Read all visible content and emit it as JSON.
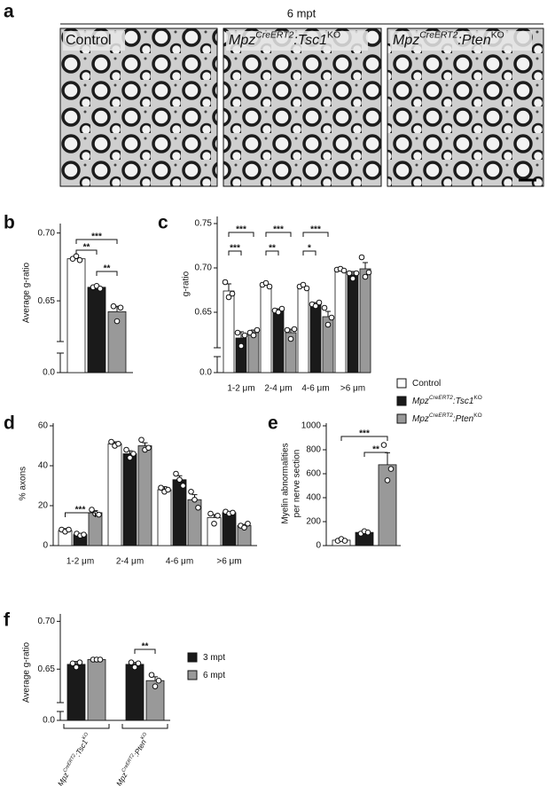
{
  "panel_a": {
    "letter": "a",
    "header": "6 mpt",
    "images": [
      [
        "Control"
      ],
      [
        "Mpz",
        "CreERT2",
        ":Tsc1",
        "KO"
      ],
      [
        "Mpz",
        "CreERT2",
        ":Pten",
        "KO"
      ]
    ]
  },
  "chart_data": [
    {
      "panel": "b",
      "type": "bar",
      "ylabel": "Average g-ratio",
      "ylim": [
        0.62,
        0.705
      ],
      "yticks": [
        0.65,
        {
          "value": 0.7,
          "label": "0.70"
        }
      ],
      "lower_yticks": [
        {
          "value": 0,
          "label": "0.0"
        }
      ],
      "series": [
        {
          "color": "#ffffff",
          "values": [
            0.681
          ],
          "errors": [
            0.001
          ],
          "points": [
            [
              0.681,
              0.683,
              0.68
            ]
          ]
        },
        {
          "color": "#1a1a1a",
          "values": [
            0.66
          ],
          "errors": [
            0.001
          ],
          "points": [
            [
              0.66,
              0.661,
              0.659
            ]
          ]
        },
        {
          "color": "#999999",
          "values": [
            0.642
          ],
          "errors": [
            0.004
          ],
          "points": [
            [
              0.646,
              0.635,
              0.645
            ]
          ]
        }
      ],
      "annotations": [
        "***",
        "**",
        "**"
      ]
    },
    {
      "panel": "c",
      "type": "bar",
      "ylabel": "g-ratio",
      "categories": [
        "1-2 μm",
        "2-4 μm",
        "4-6 μm",
        ">6 μm"
      ],
      "ylim": [
        0.61,
        0.755
      ],
      "yticks": [
        0.65,
        {
          "value": 0.7,
          "label": "0.70"
        },
        0.75
      ],
      "lower_yticks": [
        {
          "value": 0,
          "label": "0.0"
        }
      ],
      "series": [
        {
          "name": [
            "Control"
          ],
          "color": "#ffffff",
          "values": [
            0.674,
            0.681,
            0.679,
            0.698
          ],
          "errors": [
            0.008,
            0.002,
            0.002,
            0.002
          ],
          "points": [
            [
              0.684,
              0.667,
              0.671
            ],
            [
              0.681,
              0.683,
              0.679
            ],
            [
              0.679,
              0.681,
              0.677
            ],
            [
              0.698,
              0.699,
              0.697
            ]
          ]
        },
        {
          "name": [
            "Mpz",
            "CreERT2",
            ":Tsc1",
            "KO"
          ],
          "color": "#1a1a1a",
          "values": [
            0.621,
            0.652,
            0.659,
            0.692
          ],
          "errors": [
            0.007,
            0.002,
            0.002,
            0.004
          ],
          "points": [
            [
              0.627,
              0.612,
              0.624
            ],
            [
              0.652,
              0.65,
              0.654
            ],
            [
              0.659,
              0.657,
              0.661
            ],
            [
              0.694,
              0.688,
              0.694
            ]
          ]
        },
        {
          "name": [
            "Mpz",
            "CreERT2",
            ":Pten",
            "KO"
          ],
          "color": "#999999",
          "values": [
            0.627,
            0.627,
            0.645,
            0.699
          ],
          "errors": [
            0.003,
            0.004,
            0.006,
            0.007
          ],
          "points": [
            [
              0.627,
              0.624,
              0.63
            ],
            [
              0.63,
              0.62,
              0.631
            ],
            [
              0.655,
              0.636,
              0.644
            ],
            [
              0.712,
              0.69,
              0.695
            ]
          ]
        }
      ],
      "annotations": [
        "***",
        "***",
        "***",
        "**",
        "***",
        "*"
      ]
    },
    {
      "panel": "d",
      "type": "bar",
      "ylabel": "% axons",
      "categories": [
        "1-2 μm",
        "2-4 μm",
        "4-6 μm",
        ">6 μm"
      ],
      "ylim": [
        0,
        60
      ],
      "yticks": [
        0,
        20,
        40,
        60
      ],
      "series": [
        {
          "color": "#ffffff",
          "values": [
            7.5,
            51,
            28,
            14
          ],
          "errors": [
            1,
            1,
            1.5,
            1.5
          ],
          "points": [
            [
              8,
              7,
              8
            ],
            [
              52,
              50,
              51
            ],
            [
              29,
              27,
              28
            ],
            [
              16,
              11,
              15
            ]
          ]
        },
        {
          "color": "#1a1a1a",
          "values": [
            5.5,
            46,
            33,
            16.5
          ],
          "errors": [
            0.5,
            1.5,
            2,
            0.5
          ],
          "points": [
            [
              6,
              5,
              5.5
            ],
            [
              48,
              44,
              46
            ],
            [
              36,
              33,
              30
            ],
            [
              17,
              16,
              16.5
            ]
          ]
        },
        {
          "color": "#999999",
          "values": [
            16.5,
            50,
            23,
            10
          ],
          "errors": [
            1,
            1.5,
            2.5,
            0.6
          ],
          "points": [
            [
              18,
              16,
              15.5
            ],
            [
              53,
              48,
              49
            ],
            [
              27,
              23,
              19
            ],
            [
              10,
              9,
              11
            ]
          ]
        }
      ],
      "annotations": [
        "***"
      ]
    },
    {
      "panel": "e",
      "type": "bar",
      "ylabel": [
        "Myelin abnormalities",
        "per nerve section"
      ],
      "ylim": [
        0,
        1000
      ],
      "yticks": [
        0,
        200,
        400,
        600,
        800,
        1000
      ],
      "series": [
        {
          "color": "#ffffff",
          "values": [
            45
          ],
          "errors": [
            8
          ],
          "points": [
            [
              40,
              55,
              40
            ]
          ]
        },
        {
          "color": "#1a1a1a",
          "values": [
            110
          ],
          "errors": [
            12
          ],
          "points": [
            [
              100,
              120,
              110
            ]
          ]
        },
        {
          "color": "#999999",
          "values": [
            675
          ],
          "errors": [
            100
          ],
          "points": [
            [
              840,
              545,
              640
            ]
          ]
        }
      ],
      "annotations": [
        "***",
        "**"
      ]
    },
    {
      "panel": "f",
      "type": "bar",
      "ylabel": "Average g-ratio",
      "categories": [
        [
          "Mpz",
          "CreERT2",
          ":Tsc1",
          "KO"
        ],
        [
          "Mpz",
          "CreERT2",
          ":Pten",
          "KO"
        ]
      ],
      "ylim": [
        0.615,
        0.705
      ],
      "yticks": [
        0.65,
        {
          "value": 0.7,
          "label": "0.70"
        }
      ],
      "lower_yticks": [
        {
          "value": 0,
          "label": "0.0"
        }
      ],
      "series": [
        {
          "name": [
            "3 mpt"
          ],
          "color": "#1a1a1a",
          "values": [
            0.655,
            0.655
          ],
          "errors": [
            0.003,
            0.002
          ],
          "points": [
            [
              0.656,
              0.652,
              0.657
            ],
            [
              0.657,
              0.652,
              0.656
            ]
          ]
        },
        {
          "name": [
            "6 mpt"
          ],
          "color": "#999999",
          "values": [
            0.66,
            0.638
          ],
          "errors": [
            0.001,
            0.004
          ],
          "points": [
            [
              0.66,
              0.66,
              0.66
            ],
            [
              0.644,
              0.632,
              0.638
            ]
          ]
        }
      ],
      "annotations": [
        "**"
      ]
    }
  ]
}
